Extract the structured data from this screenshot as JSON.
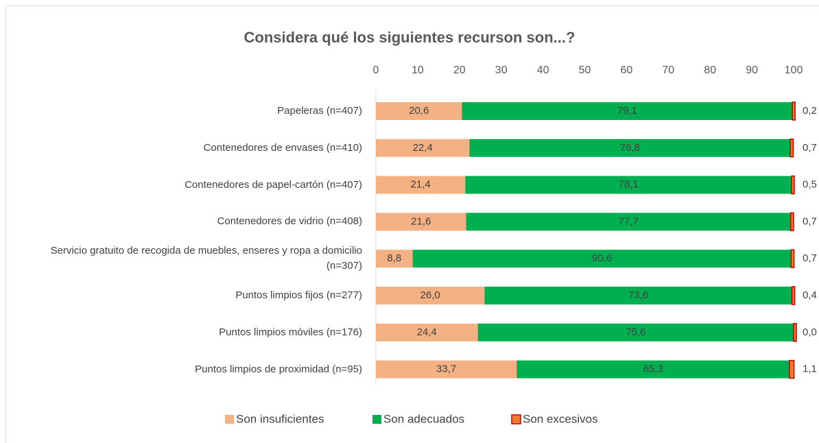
{
  "chart_data": {
    "type": "stacked_bar_horizontal",
    "title": "Considera qué los siguientes recurson son...?",
    "categories": [
      "Papeleras (n=407)",
      "Contenedores de envases (n=410)",
      "Contenedores de papel-cartón (n=407)",
      "Contenedores de vidrio (n=408)",
      "Servicio gratuito de recogida de muebles, enseres y ropa a domicilio (n=307)",
      "Puntos limpios fijos (n=277)",
      "Puntos limpios móviles (n=176)",
      "Puntos limpios de proximidad (n=95)"
    ],
    "series": [
      {
        "name": "Son insuficientes",
        "color": "#f4b183",
        "values": [
          20.6,
          22.4,
          21.4,
          21.6,
          8.8,
          26.0,
          24.4,
          33.7
        ],
        "value_labels": [
          "20,6",
          "22,4",
          "21,4",
          "21,6",
          "8,8",
          "26,0",
          "24,4",
          "33,7"
        ]
      },
      {
        "name": "Son adecuados",
        "color": "#00b050",
        "values": [
          79.1,
          76.8,
          78.1,
          77.7,
          90.6,
          73.6,
          75.6,
          65.3
        ],
        "value_labels": [
          "79,1",
          "76,8",
          "78,1",
          "77,7",
          "90,6",
          "73,6",
          "75,6",
          "65,3"
        ]
      },
      {
        "name": "Son excesivos",
        "color": "#ed7d31",
        "values": [
          0.2,
          0.7,
          0.5,
          0.7,
          0.7,
          0.4,
          0.0,
          1.1
        ],
        "value_labels": [
          "0,2",
          "0,7",
          "0,5",
          "0,7",
          "0,7",
          "0,4",
          "0,0",
          "1,1"
        ]
      }
    ],
    "xlim": [
      0,
      100
    ],
    "xticks": [
      0,
      10,
      20,
      30,
      40,
      50,
      60,
      70,
      80,
      90,
      100
    ],
    "legend": "bottom"
  }
}
